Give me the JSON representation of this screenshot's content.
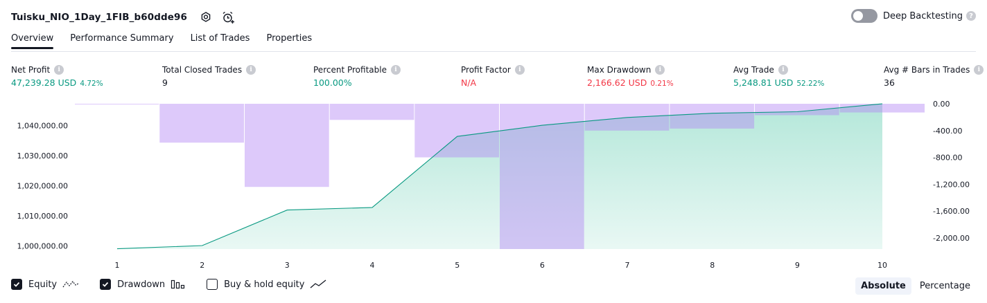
{
  "header": {
    "strategy_title": "Tuisku_NIO_1Day_1FIB_b60dde96",
    "deep_backtesting_label": "Deep Backtesting",
    "deep_backtesting_enabled": false
  },
  "tabs": [
    {
      "label": "Overview",
      "active": true
    },
    {
      "label": "Performance Summary",
      "active": false
    },
    {
      "label": "List of Trades",
      "active": false
    },
    {
      "label": "Properties",
      "active": false
    }
  ],
  "metrics": [
    {
      "label": "Net Profit",
      "value": "47,239.28 USD",
      "sub": "4.72%",
      "color": "#089981"
    },
    {
      "label": "Total Closed Trades",
      "value": "9",
      "sub": "",
      "color": "#131722"
    },
    {
      "label": "Percent Profitable",
      "value": "100.00%",
      "sub": "",
      "color": "#089981"
    },
    {
      "label": "Profit Factor",
      "value": "N/A",
      "sub": "",
      "color": "#f23645"
    },
    {
      "label": "Max Drawdown",
      "value": "2,166.62 USD",
      "sub": "0.21%",
      "color": "#f23645"
    },
    {
      "label": "Avg Trade",
      "value": "5,248.81 USD",
      "sub": "52.22%",
      "color": "#089981"
    },
    {
      "label": "Avg # Bars in Trades",
      "value": "36",
      "sub": "",
      "color": "#131722"
    }
  ],
  "chart_data": {
    "type": "area",
    "x": [
      1,
      2,
      3,
      4,
      5,
      6,
      7,
      8,
      9,
      10
    ],
    "x_tick_labels": [
      "1",
      "2",
      "3",
      "4",
      "5",
      "6",
      "7",
      "8",
      "9",
      "10"
    ],
    "equity_axis": {
      "range": [
        999000,
        1047239.28
      ],
      "ticks": [
        1000000,
        1010000,
        1020000,
        1030000,
        1040000
      ],
      "tick_labels": [
        "1,000,000.00",
        "1,010,000.00",
        "1,020,000.00",
        "1,030,000.00",
        "1,040,000.00"
      ]
    },
    "drawdown_axis": {
      "range": [
        -2166.62,
        0
      ],
      "ticks": [
        0,
        -400,
        -800,
        -1200,
        -1600,
        -2000
      ],
      "tick_labels": [
        "0.00",
        "-400.00",
        "-800.00",
        "-1,200.00",
        "-1,600.00",
        "-2,000.00"
      ]
    },
    "series": [
      {
        "name": "Equity",
        "type": "area",
        "color": "#089981",
        "values": [
          999100,
          1000150,
          1011950,
          1012800,
          1036400,
          1040100,
          1042700,
          1044100,
          1044600,
          1047239.28
        ]
      },
      {
        "name": "Drawdown",
        "type": "bar",
        "color": "#c9a5f7",
        "values": [
          -6,
          -580,
          -1240,
          -240,
          -800,
          -2166.62,
          -400,
          -370,
          -170,
          -130
        ]
      }
    ],
    "grid": false
  },
  "legend": [
    {
      "label": "Equity",
      "checked": true,
      "icon": "equity-line-icon"
    },
    {
      "label": "Drawdown",
      "checked": true,
      "icon": "bars-icon"
    },
    {
      "label": "Buy & hold equity",
      "checked": false,
      "icon": "trend-line-icon"
    }
  ],
  "modes": [
    {
      "label": "Absolute",
      "active": true
    },
    {
      "label": "Percentage",
      "active": false
    }
  ]
}
